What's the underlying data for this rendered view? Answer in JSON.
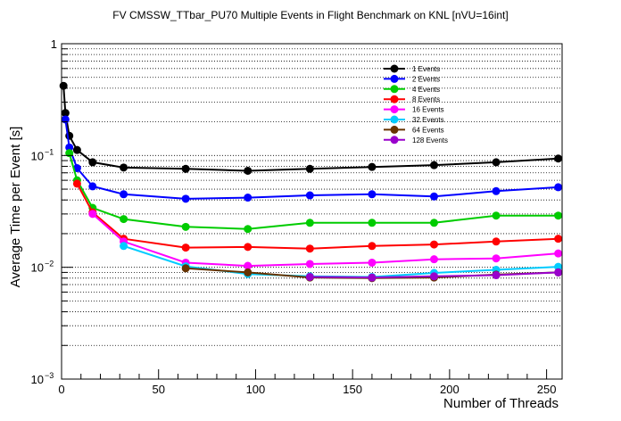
{
  "chart_data": {
    "type": "line",
    "title": "FV CMSSW_TTbar_PU70 Multiple Events in Flight Benchmark on KNL [nVU=16int]",
    "xlabel": "Number of Threads",
    "ylabel": "Average Time per Event [s]",
    "xlim": [
      0,
      258
    ],
    "ylim": [
      0.001,
      1
    ],
    "yscale": "log",
    "grid": "horizontal dotted",
    "legend_position": "top-right",
    "x_ticks": [
      0,
      50,
      100,
      150,
      200,
      250
    ],
    "x_tick_labels": [
      "0",
      "50",
      "100",
      "150",
      "200",
      "250"
    ],
    "y_tick_labels": [
      {
        "base": "10",
        "exp": "−3",
        "value": 0.001
      },
      {
        "base": "10",
        "exp": "−2",
        "value": 0.01
      },
      {
        "base": "10",
        "exp": "−1",
        "value": 0.1
      },
      {
        "base": "1",
        "exp": "",
        "value": 1
      }
    ],
    "series": [
      {
        "name": "1 Events",
        "color": "#000000",
        "x": [
          1,
          2,
          4,
          8,
          16,
          32,
          64,
          96,
          128,
          160,
          192,
          224,
          256
        ],
        "y": [
          0.42,
          0.24,
          0.15,
          0.112,
          0.087,
          0.078,
          0.076,
          0.073,
          0.076,
          0.079,
          0.082,
          0.087,
          0.094
        ]
      },
      {
        "name": "2 Events",
        "color": "#0000ff",
        "x": [
          2,
          4,
          8,
          16,
          32,
          64,
          96,
          128,
          160,
          192,
          224,
          256
        ],
        "y": [
          0.21,
          0.118,
          0.077,
          0.053,
          0.045,
          0.041,
          0.042,
          0.044,
          0.045,
          0.043,
          0.048,
          0.052
        ]
      },
      {
        "name": "4 Events",
        "color": "#00cc00",
        "x": [
          4,
          8,
          16,
          32,
          64,
          96,
          128,
          160,
          192,
          224,
          256
        ],
        "y": [
          0.105,
          0.06,
          0.034,
          0.027,
          0.023,
          0.022,
          0.025,
          0.025,
          0.025,
          0.029,
          0.029
        ]
      },
      {
        "name": "8 Events",
        "color": "#ff0000",
        "x": [
          8,
          16,
          32,
          64,
          96,
          128,
          160,
          192,
          224,
          256
        ],
        "y": [
          0.056,
          0.031,
          0.018,
          0.015,
          0.0152,
          0.0147,
          0.0155,
          0.016,
          0.017,
          0.018
        ]
      },
      {
        "name": "16 Events",
        "color": "#ff00ff",
        "x": [
          16,
          32,
          64,
          96,
          128,
          160,
          192,
          224,
          256
        ],
        "y": [
          0.03,
          0.017,
          0.011,
          0.0103,
          0.0107,
          0.011,
          0.0118,
          0.012,
          0.0133
        ]
      },
      {
        "name": "32 Events",
        "color": "#00ccff",
        "x": [
          32,
          64,
          96,
          128,
          160,
          192,
          224,
          256
        ],
        "y": [
          0.0155,
          0.0102,
          0.0087,
          0.0083,
          0.0082,
          0.0089,
          0.0095,
          0.0101
        ]
      },
      {
        "name": "64 Events",
        "color": "#663300",
        "x": [
          64,
          96,
          128,
          160,
          192,
          224,
          256
        ],
        "y": [
          0.0098,
          0.009,
          0.0081,
          0.008,
          0.0081,
          0.0086,
          0.009
        ]
      },
      {
        "name": "128 Events",
        "color": "#9900cc",
        "x": [
          128,
          160,
          192,
          224,
          256
        ],
        "y": [
          0.0082,
          0.0081,
          0.0083,
          0.0085,
          0.009
        ]
      }
    ]
  }
}
